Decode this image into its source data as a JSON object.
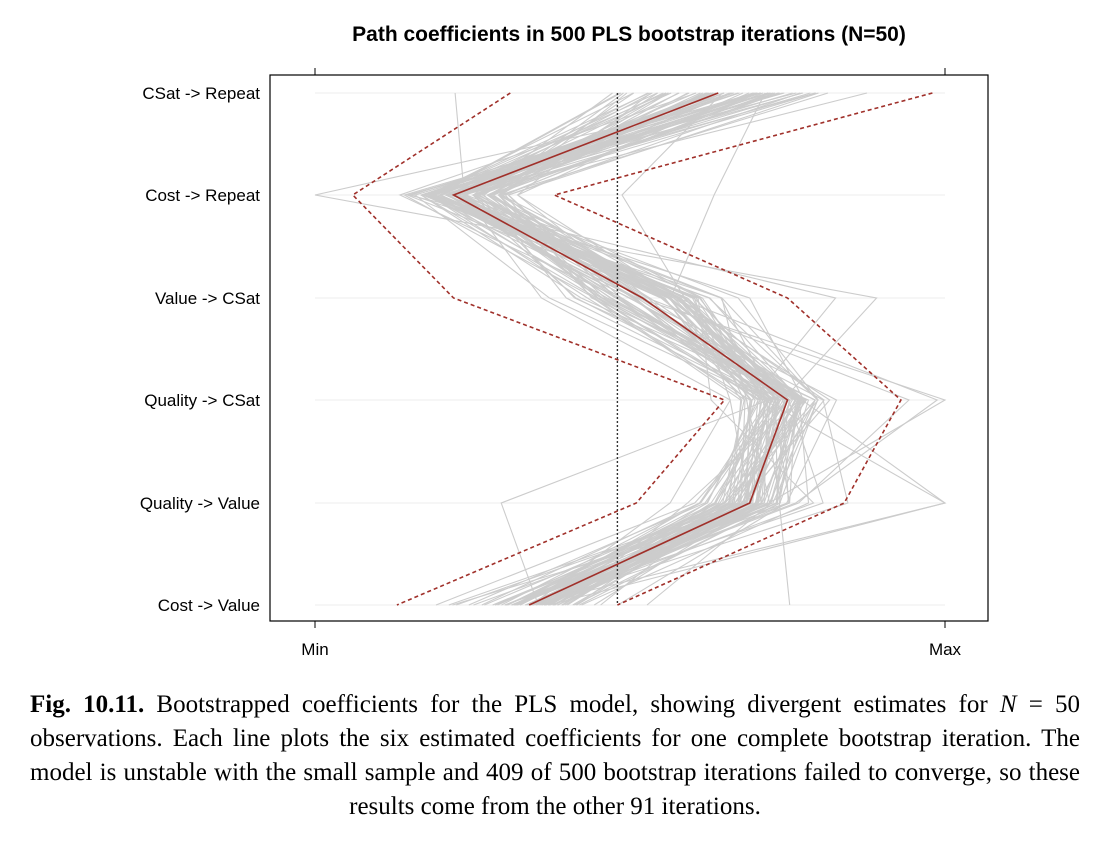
{
  "chart_data": {
    "type": "parallel_coordinates",
    "title": "Path coefficients in 500 PLS bootstrap iterations (N=50)",
    "variables": [
      "CSat -> Repeat",
      "Cost -> Repeat",
      "Value -> CSat",
      "Quality -> CSat",
      "Quality -> Value",
      "Cost -> Value"
    ],
    "x_axis": {
      "min_label": "Min",
      "max_label": "Max",
      "range": [
        0,
        1
      ]
    },
    "reference_line": {
      "x": 0.48,
      "style": "dotted",
      "color": "#333333"
    },
    "bootstrap_lines": {
      "count": 91,
      "color": "#cccccc"
    },
    "series": [
      {
        "role": "median",
        "color": "#a0302a",
        "style": "solid",
        "values": [
          0.64,
          0.22,
          0.52,
          0.75,
          0.69,
          0.34
        ]
      },
      {
        "role": "upper-bound",
        "color": "#a0302a",
        "style": "dashed",
        "values": [
          0.98,
          0.38,
          0.75,
          0.93,
          0.84,
          0.48
        ]
      },
      {
        "role": "lower-bound",
        "color": "#a0302a",
        "style": "dashed",
        "values": [
          0.31,
          0.06,
          0.22,
          0.65,
          0.51,
          0.13
        ]
      }
    ],
    "grid": true
  },
  "caption": {
    "label": "Fig. 10.11.",
    "text1": " Bootstrapped coefficients for the PLS model, showing divergent estimates for ",
    "n_symbol": "N",
    "text2": " = 50 observations. Each line plots the six estimated coefficients for one complete bootstrap iteration. The model is unstable with the small sample and 409 of 500 bootstrap iterations failed to converge, so these results come from the other 91 iterations."
  }
}
